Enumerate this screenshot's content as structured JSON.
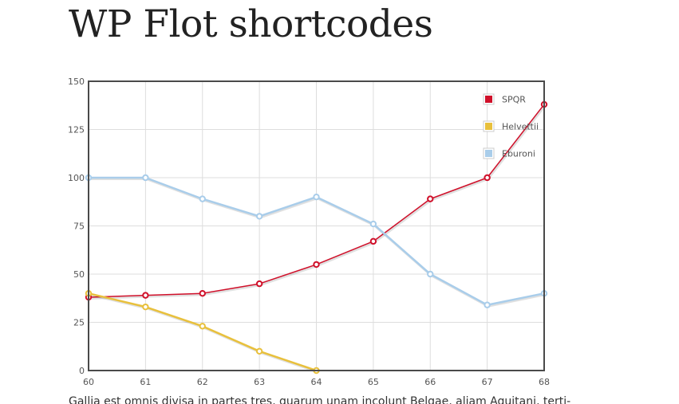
{
  "page": {
    "title": "WP Flot shortcodes",
    "paragraph": "Gallia est omnis divisa in partes tres, quarum unam incolunt Belgae, aliam Aquitani, terti-"
  },
  "chart_data": {
    "type": "line",
    "x": [
      60,
      61,
      62,
      63,
      64,
      65,
      66,
      67,
      68
    ],
    "xlim": [
      60,
      68
    ],
    "ylim": [
      0,
      150
    ],
    "x_ticks": [
      "60",
      "61",
      "62",
      "63",
      "64",
      "65",
      "66",
      "67",
      "68"
    ],
    "y_ticks": [
      "0",
      "25",
      "50",
      "75",
      "100",
      "125",
      "150"
    ],
    "grid": true,
    "legend": "top-right",
    "series": [
      {
        "name": "SPQR",
        "color": "#d0102a",
        "points": [
          [
            60,
            38
          ],
          [
            61,
            39
          ],
          [
            62,
            40
          ],
          [
            63,
            45
          ],
          [
            64,
            55
          ],
          [
            65,
            67
          ],
          [
            66,
            89
          ],
          [
            67,
            100
          ],
          [
            68,
            138
          ]
        ]
      },
      {
        "name": "Helvettii",
        "color": "#e8c03c",
        "points": [
          [
            60,
            40
          ],
          [
            61,
            33
          ],
          [
            62,
            23
          ],
          [
            63,
            10
          ],
          [
            64,
            0
          ]
        ]
      },
      {
        "name": "Eburoni",
        "color": "#a9cdea",
        "points": [
          [
            60,
            100
          ],
          [
            61,
            100
          ],
          [
            62,
            89
          ],
          [
            63,
            80
          ],
          [
            64,
            90
          ],
          [
            65,
            76
          ],
          [
            66,
            50
          ],
          [
            67,
            34
          ],
          [
            68,
            40
          ]
        ]
      }
    ]
  }
}
